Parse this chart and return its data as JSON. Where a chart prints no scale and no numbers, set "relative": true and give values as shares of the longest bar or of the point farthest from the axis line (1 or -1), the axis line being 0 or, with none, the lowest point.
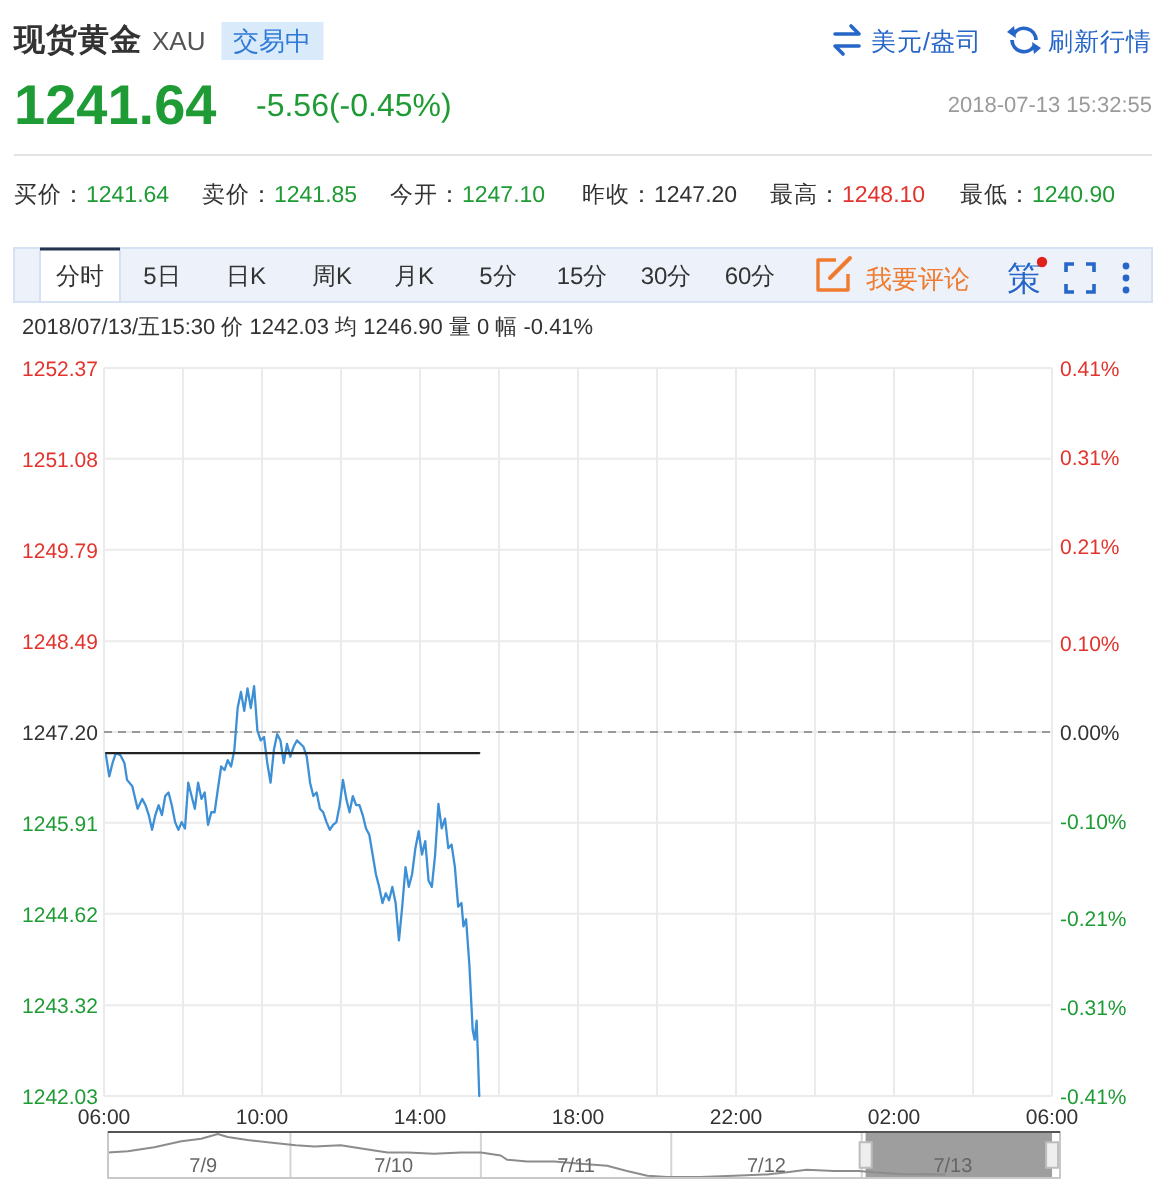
{
  "chart_data": [
    {
      "type": "other",
      "title": "现货黄金",
      "subtitle": "XAU",
      "annotations": [
        "交易中",
        "美元/盎司",
        "刷新行情",
        "1241.64",
        "-5.56(-0.45%)",
        "2018-07-13 15:32:55",
        "买价：1241.64",
        "卖价：1241.85",
        "今开：1247.10",
        "昨收：1247.20",
        "最高：1248.10",
        "最低：1240.90",
        "分时",
        "5日",
        "日K",
        "周K",
        "月K",
        "5分",
        "15分",
        "30分",
        "60分",
        "我要评论",
        "策"
      ]
    },
    {
      "type": "line",
      "xlim": [
        "2018-07-13T06:00",
        "2018-07-14T06:00"
      ],
      "xticks": [
        {
          "value": "2018-07-13T06:00",
          "label": "06:00"
        },
        {
          "value": "2018-07-13T08:00",
          "label": null
        },
        {
          "value": "2018-07-13T10:00",
          "label": "10:00"
        },
        {
          "value": "2018-07-13T12:00",
          "label": null
        },
        {
          "value": "2018-07-13T14:00",
          "label": "14:00"
        },
        {
          "value": "2018-07-13T16:00",
          "label": null
        },
        {
          "value": "2018-07-13T18:00",
          "label": "18:00"
        },
        {
          "value": "2018-07-13T20:00",
          "label": null
        },
        {
          "value": "2018-07-13T22:00",
          "label": "22:00"
        },
        {
          "value": "2018-07-14T00:00",
          "label": null
        },
        {
          "value": "2018-07-14T02:00",
          "label": "02:00"
        },
        {
          "value": "2018-07-14T04:00",
          "label": null
        },
        {
          "value": "2018-07-14T06:00",
          "label": "06:00"
        }
      ],
      "ylim": [
        1242.03,
        1252.37
      ],
      "yticks": [
        1242.03,
        1243.32,
        1244.62,
        1245.91,
        {
          "value": 1247.2,
          "label": "1247.20"
        },
        1248.49,
        1249.79,
        1251.08,
        1252.37
      ],
      "y2lim": [
        -0.41,
        0.41
      ],
      "y2ticks": [
        {
          "value": -0.41,
          "label": "-0.41%"
        },
        {
          "value": -0.31,
          "label": "-0.31%"
        },
        {
          "value": -0.21,
          "label": "-0.21%"
        },
        {
          "value": -0.1,
          "label": "-0.10%"
        },
        {
          "value": 0,
          "label": "0.00%"
        },
        {
          "value": 0.1,
          "label": "0.10%"
        },
        {
          "value": 0.21,
          "label": "0.21%"
        },
        {
          "value": 0.31,
          "label": "0.31%"
        },
        {
          "value": 0.41,
          "label": "0.41%"
        }
      ],
      "grid": true,
      "ref_lines": [
        {
          "axis": "y",
          "value": 1247.2,
          "color": "#999999",
          "line_style": "dashed"
        }
      ],
      "series": [
        {
          "color": "#3d8fd6",
          "x": [
            "2018-07-13T06:03",
            "2018-07-13T06:08",
            "2018-07-13T06:13",
            "2018-07-13T06:18",
            "2018-07-13T06:25",
            "2018-07-13T06:31",
            "2018-07-13T06:35",
            "2018-07-13T06:43",
            "2018-07-13T06:51",
            "2018-07-13T06:58",
            "2018-07-13T07:03",
            "2018-07-13T07:08",
            "2018-07-13T07:13",
            "2018-07-13T07:18",
            "2018-07-13T07:23",
            "2018-07-13T07:28",
            "2018-07-13T07:33",
            "2018-07-13T07:38",
            "2018-07-13T07:43",
            "2018-07-13T07:48",
            "2018-07-13T07:53",
            "2018-07-13T07:58",
            "2018-07-13T08:03",
            "2018-07-13T08:08",
            "2018-07-13T08:13",
            "2018-07-13T08:18",
            "2018-07-13T08:23",
            "2018-07-13T08:28",
            "2018-07-13T08:33",
            "2018-07-13T08:38",
            "2018-07-13T08:43",
            "2018-07-13T08:48",
            "2018-07-13T08:53",
            "2018-07-13T08:58",
            "2018-07-13T09:03",
            "2018-07-13T09:08",
            "2018-07-13T09:13",
            "2018-07-13T09:18",
            "2018-07-13T09:23",
            "2018-07-13T09:28",
            "2018-07-13T09:33",
            "2018-07-13T09:38",
            "2018-07-13T09:43",
            "2018-07-13T09:48",
            "2018-07-13T09:53",
            "2018-07-13T09:58",
            "2018-07-13T10:03",
            "2018-07-13T10:08",
            "2018-07-13T10:13",
            "2018-07-13T10:18",
            "2018-07-13T10:23",
            "2018-07-13T10:28",
            "2018-07-13T10:33",
            "2018-07-13T10:38",
            "2018-07-13T10:43",
            "2018-07-13T10:48",
            "2018-07-13T10:53",
            "2018-07-13T11:03",
            "2018-07-13T11:08",
            "2018-07-13T11:13",
            "2018-07-13T11:18",
            "2018-07-13T11:23",
            "2018-07-13T11:28",
            "2018-07-13T11:33",
            "2018-07-13T11:38",
            "2018-07-13T11:43",
            "2018-07-13T11:48",
            "2018-07-13T11:53",
            "2018-07-13T11:58",
            "2018-07-13T12:03",
            "2018-07-13T12:08",
            "2018-07-13T12:13",
            "2018-07-13T12:18",
            "2018-07-13T12:23",
            "2018-07-13T12:28",
            "2018-07-13T12:33",
            "2018-07-13T12:38",
            "2018-07-13T12:43",
            "2018-07-13T12:48",
            "2018-07-13T12:53",
            "2018-07-13T12:58",
            "2018-07-13T13:03",
            "2018-07-13T13:08",
            "2018-07-13T13:13",
            "2018-07-13T13:18",
            "2018-07-13T13:23",
            "2018-07-13T13:28",
            "2018-07-13T13:33",
            "2018-07-13T13:38",
            "2018-07-13T13:43",
            "2018-07-13T13:48",
            "2018-07-13T13:53",
            "2018-07-13T13:58",
            "2018-07-13T14:03",
            "2018-07-13T14:08",
            "2018-07-13T14:13",
            "2018-07-13T14:18",
            "2018-07-13T14:23",
            "2018-07-13T14:28",
            "2018-07-13T14:33",
            "2018-07-13T14:38",
            "2018-07-13T14:43",
            "2018-07-13T14:48",
            "2018-07-13T14:53",
            "2018-07-13T14:58",
            "2018-07-13T15:03",
            "2018-07-13T15:06",
            "2018-07-13T15:10",
            "2018-07-13T15:15",
            "2018-07-13T15:20",
            "2018-07-13T15:23",
            "2018-07-13T15:26",
            "2018-07-13T15:28",
            "2018-07-13T15:30"
          ],
          "values": [
            1246.87,
            1246.57,
            1246.76,
            1246.9,
            1246.87,
            1246.76,
            1246.52,
            1246.43,
            1246.11,
            1246.25,
            1246.16,
            1246.02,
            1245.81,
            1246.02,
            1246.16,
            1246.02,
            1246.29,
            1246.34,
            1246.16,
            1245.92,
            1245.81,
            1245.92,
            1245.83,
            1246.48,
            1246.29,
            1246.11,
            1246.48,
            1246.25,
            1246.34,
            1245.88,
            1246.06,
            1246.06,
            1246.39,
            1246.71,
            1246.66,
            1246.8,
            1246.71,
            1246.94,
            1247.54,
            1247.77,
            1247.5,
            1247.82,
            1247.54,
            1247.85,
            1247.22,
            1247.08,
            1247.13,
            1246.76,
            1246.48,
            1246.94,
            1247.17,
            1247.08,
            1246.76,
            1247.03,
            1246.85,
            1246.99,
            1247.08,
            1246.99,
            1246.85,
            1246.48,
            1246.29,
            1246.34,
            1246.11,
            1246.06,
            1245.92,
            1245.81,
            1245.88,
            1245.92,
            1246.16,
            1246.52,
            1246.25,
            1246.06,
            1246.29,
            1246.16,
            1246.16,
            1246.02,
            1245.83,
            1245.74,
            1245.46,
            1245.18,
            1245.0,
            1244.77,
            1244.91,
            1244.81,
            1245.0,
            1244.77,
            1244.24,
            1244.72,
            1245.28,
            1245.0,
            1245.18,
            1245.55,
            1245.79,
            1245.46,
            1245.65,
            1245.09,
            1245.0,
            1245.46,
            1246.18,
            1245.83,
            1245.97,
            1245.55,
            1245.6,
            1245.28,
            1244.72,
            1244.77,
            1244.44,
            1244.54,
            1243.89,
            1242.97,
            1242.83,
            1243.1,
            1242.6,
            1242.03
          ]
        },
        {
          "color": "#222222",
          "x": [
            "2018-07-13T06:03",
            "2018-07-13T15:30"
          ],
          "values": [
            1246.9,
            1246.9
          ]
        }
      ],
      "annotations": [
        "2018/07/13/五15:30 价 1242.03 均 1246.90 量 0 幅 -0.41%"
      ]
    },
    {
      "type": "line",
      "relative": true,
      "xlim": [
        "2018-07-09T06:00",
        "2018-07-14T06:00"
      ],
      "xticks": [
        {
          "value": "2018-07-09T18:00",
          "label": "7/9"
        },
        {
          "value": "2018-07-10T18:00",
          "label": "7/10"
        },
        {
          "value": "2018-07-11T17:00",
          "label": "7/11"
        },
        {
          "value": "2018-07-12T17:00",
          "label": "7/12"
        },
        {
          "value": "2018-07-13T16:30",
          "label": "7/13"
        }
      ],
      "ref_lines": [
        {
          "axis": "x",
          "value": "2018-07-10T05:00",
          "color": "#d4d4d4"
        },
        {
          "axis": "x",
          "value": "2018-07-11T05:00",
          "color": "#d4d4d4"
        },
        {
          "axis": "x",
          "value": "2018-07-12T05:00",
          "color": "#d4d4d4"
        },
        {
          "axis": "x",
          "value": "2018-07-13T05:00",
          "color": "#d4d4d4"
        }
      ],
      "bands": [
        {
          "axis": "x",
          "from": "2018-07-13T05:30",
          "to": "2018-07-14T05:00",
          "color": "#9e9e9e"
        }
      ],
      "series": [
        {
          "color": "#8c8c8c",
          "x": [
            "2018-07-09T06:00",
            "2018-07-09T08:30",
            "2018-07-09T11:50",
            "2018-07-09T15:15",
            "2018-07-09T17:45",
            "2018-07-09T19:50",
            "2018-07-09T21:05",
            "2018-07-09T23:35",
            "2018-07-10T03:00",
            "2018-07-10T05:40",
            "2018-07-10T08:00",
            "2018-07-10T11:20",
            "2018-07-10T14:45",
            "2018-07-10T17:15",
            "2018-07-10T19:45",
            "2018-07-10T23:05",
            "2018-07-11T02:30",
            "2018-07-11T05:00",
            "2018-07-11T07:30",
            "2018-07-11T08:20",
            "2018-07-11T10:50",
            "2018-07-11T14:15",
            "2018-07-11T17:35",
            "2018-07-11T20:55",
            "2018-07-11T23:25",
            "2018-07-12T02:00",
            "2018-07-12T04:30",
            "2018-07-12T08:40",
            "2018-07-12T12:55",
            "2018-07-12T17:05",
            "2018-07-12T19:35",
            "2018-07-12T22:05",
            "2018-07-13T01:30",
            "2018-07-13T04:40",
            "2018-07-13T06:30",
            "2018-07-13T09:50",
            "2018-07-13T15:30"
          ],
          "values": [
            0.57,
            0.6,
            0.69,
            0.83,
            0.89,
            1,
            0.93,
            0.86,
            0.79,
            0.74,
            0.71,
            0.74,
            0.64,
            0.57,
            0.57,
            0.54,
            0.57,
            0.57,
            0.5,
            0.4,
            0.36,
            0.36,
            0.31,
            0.26,
            0.14,
            0.03,
            0,
            0,
            0.03,
            0.06,
            0.11,
            0.17,
            0.14,
            0.14,
            0.11,
            0.07,
            0.06
          ]
        }
      ]
    }
  ]
}
